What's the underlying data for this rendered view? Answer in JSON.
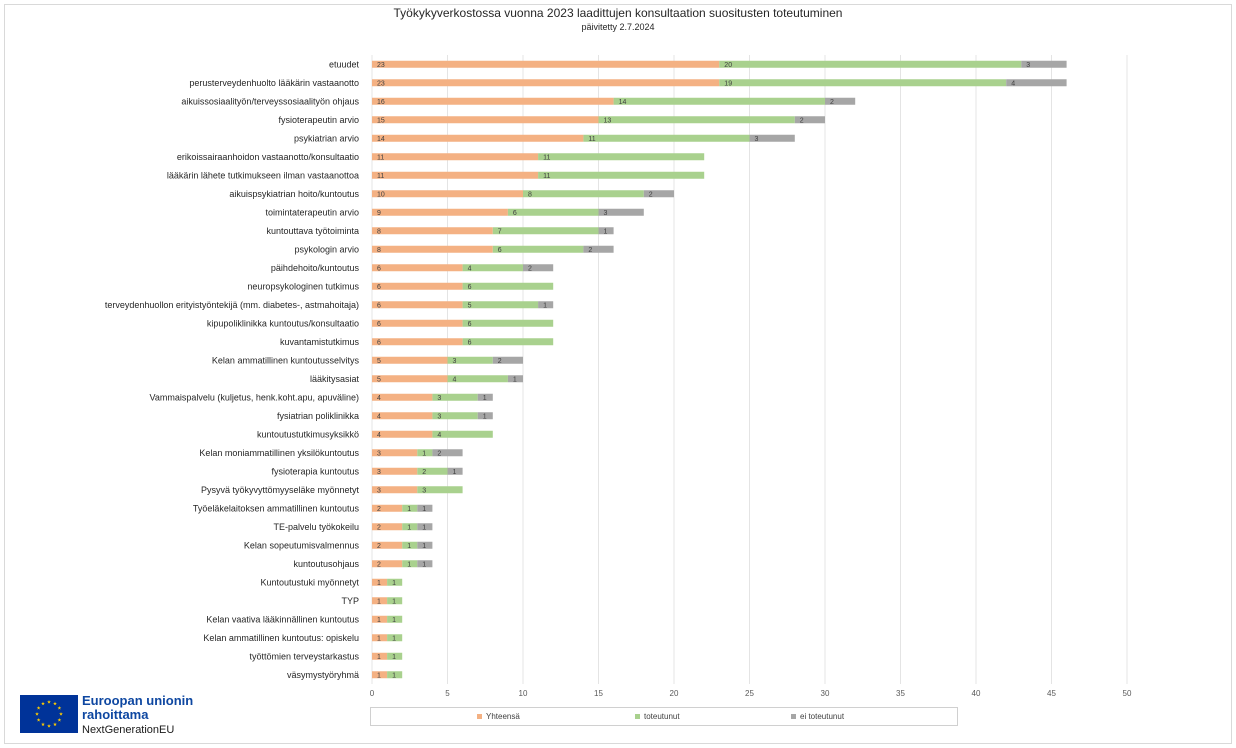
{
  "header": {
    "title": "Työkykyverkostossa vuonna 2023  laadittujen konsultaation suositusten toteutuminen",
    "subtitle": "päivitetty 2.7.2024"
  },
  "colors": {
    "yhteensa": "#f4b183",
    "toteutunut": "#a9d18e",
    "ei_toteutunut": "#a6a6a6"
  },
  "legend": [
    {
      "label": "Yhteensä",
      "color": "#f4b183"
    },
    {
      "label": "toteutunut",
      "color": "#a9d18e"
    },
    {
      "label": "ei toteutunut",
      "color": "#a6a6a6"
    }
  ],
  "footer": {
    "eu_line1": "Euroopan unionin",
    "eu_line2": "rahoittama",
    "eu_line3": "NextGenerationEU",
    "eu_flag_icon": "eu-flag-icon"
  },
  "chart_data": {
    "type": "bar",
    "orientation": "horizontal",
    "stacked": true,
    "xlim": [
      0,
      50
    ],
    "xticks": [
      0,
      5,
      10,
      15,
      20,
      25,
      30,
      35,
      40,
      45,
      50
    ],
    "grid": true,
    "legend_position": "bottom",
    "categories": [
      "etuudet",
      "perusterveydenhuolto lääkärin vastaanotto",
      "aikuissosiaalityön/terveyssosiaalityön ohjaus",
      "fysioterapeutin arvio",
      "psykiatrian arvio",
      "erikoissairaanhoidon vastaanotto/konsultaatio",
      "lääkärin lähete tutkimukseen ilman vastaanottoa",
      "aikuispsykiatrian hoito/kuntoutus",
      "toimintaterapeutin arvio",
      "kuntouttava työtoiminta",
      "psykologin arvio",
      "päihdehoito/kuntoutus",
      "neuropsykologinen tutkimus",
      "terveydenhuollon erityistyöntekijä (mm. diabetes-, astmahoitaja)",
      "kipupoliklinikka kuntoutus/konsultaatio",
      "kuvantamistutkimus",
      "Kelan ammatillinen kuntoutusselvitys",
      "lääkitysasiat",
      "Vammaispalvelu (kuljetus, henk.koht.apu, apuväline)",
      "fysiatrian poliklinikka",
      "kuntoutustutkimusyksikkö",
      "Kelan moniammatillinen yksilökuntoutus",
      "fysioterapia kuntoutus",
      "Pysyvä työkyvyttömyyseläke myönnetyt",
      "Työeläkelaitoksen ammatillinen kuntoutus",
      "TE-palvelu työkokeilu",
      "Kelan sopeutumisvalmennus",
      "kuntoutusohjaus",
      "Kuntoutustuki myönnetyt",
      "TYP",
      "Kelan vaativa lääkinnällinen kuntoutus",
      "Kelan ammatillinen kuntoutus: opiskelu",
      "työttömien terveystarkastus",
      "väsymystyöryhmä"
    ],
    "series": [
      {
        "name": "Yhteensä",
        "values": [
          23,
          23,
          16,
          15,
          14,
          11,
          11,
          10,
          9,
          8,
          8,
          6,
          6,
          6,
          6,
          6,
          5,
          5,
          4,
          4,
          4,
          3,
          3,
          3,
          2,
          2,
          2,
          2,
          1,
          1,
          1,
          1,
          1,
          1
        ]
      },
      {
        "name": "toteutunut",
        "values": [
          20,
          19,
          14,
          13,
          11,
          11,
          11,
          8,
          6,
          7,
          6,
          4,
          6,
          5,
          6,
          6,
          3,
          4,
          3,
          3,
          4,
          1,
          2,
          3,
          1,
          1,
          1,
          1,
          1,
          1,
          1,
          1,
          1,
          1
        ]
      },
      {
        "name": "ei toteutunut",
        "values": [
          3,
          4,
          2,
          2,
          3,
          null,
          null,
          2,
          3,
          1,
          2,
          2,
          null,
          1,
          null,
          null,
          2,
          1,
          1,
          1,
          null,
          2,
          1,
          null,
          1,
          1,
          1,
          1,
          null,
          null,
          null,
          null,
          null,
          null
        ]
      }
    ]
  }
}
